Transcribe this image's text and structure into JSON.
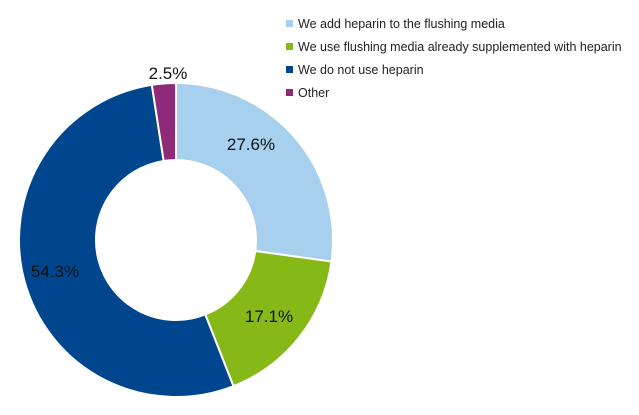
{
  "chart_data": {
    "type": "pie",
    "donut": true,
    "title": "",
    "legend_position": "top-right",
    "slices": [
      {
        "label": "We add heparin to the flushing media",
        "value": 27.6,
        "display": "27.6%",
        "color": "#a7cfee"
      },
      {
        "label": "We use flushing media already supplemented with heparin",
        "value": 17.1,
        "display": "17.1%",
        "color": "#86b817"
      },
      {
        "label": "We do not use heparin",
        "value": 54.3,
        "display": "54.3%",
        "color": "#00468e"
      },
      {
        "label": "Other",
        "value": 2.5,
        "display": "2.5%",
        "color": "#8e2a78"
      }
    ]
  }
}
